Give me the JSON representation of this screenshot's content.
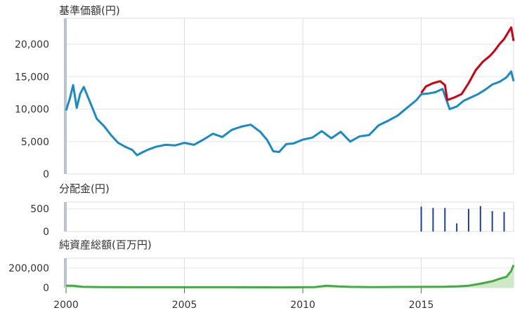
{
  "chart_data": [
    {
      "type": "line",
      "title": "基準価額(円)",
      "xlim": [
        2000.0,
        2018.9
      ],
      "ylim": [
        0,
        24000
      ],
      "yticks": [
        "0",
        "5,000",
        "10,000",
        "15,000",
        "20,000"
      ],
      "ytick_values": [
        0,
        5000,
        10000,
        15000,
        20000
      ],
      "grid": true,
      "series": [
        {
          "color": "#1a8ac6",
          "x": [
            2000.0,
            2000.15,
            2000.3,
            2000.45,
            2000.6,
            2000.75,
            2001.0,
            2001.3,
            2001.6,
            2001.9,
            2002.2,
            2002.5,
            2002.8,
            2003.0,
            2003.2,
            2003.5,
            2003.8,
            2004.2,
            2004.6,
            2005.0,
            2005.4,
            2005.8,
            2006.2,
            2006.6,
            2007.0,
            2007.4,
            2007.8,
            2008.2,
            2008.5,
            2008.75,
            2009.0,
            2009.3,
            2009.6,
            2010.0,
            2010.4,
            2010.8,
            2011.2,
            2011.6,
            2012.0,
            2012.4,
            2012.8,
            2013.2,
            2013.6,
            2014.0,
            2014.4,
            2014.8,
            2015.0,
            2015.3,
            2015.6,
            2015.9,
            2016.2,
            2016.5,
            2016.8,
            2017.1,
            2017.4,
            2017.7,
            2018.0,
            2018.3,
            2018.6,
            2018.8,
            2018.9
          ],
          "values": [
            9800,
            11500,
            13700,
            10200,
            12400,
            13400,
            11200,
            8500,
            7400,
            6000,
            4800,
            4200,
            3700,
            2900,
            3300,
            3800,
            4200,
            4500,
            4400,
            4800,
            4500,
            5300,
            6200,
            5700,
            6800,
            7300,
            7600,
            6500,
            5200,
            3500,
            3400,
            4600,
            4700,
            5300,
            5600,
            6600,
            5500,
            6500,
            5000,
            5800,
            6000,
            7500,
            8200,
            9000,
            10200,
            11400,
            12300,
            12400,
            12600,
            13100,
            10000,
            10400,
            11300,
            11800,
            12300,
            13000,
            13800,
            14200,
            14900,
            15800,
            14300
          ]
        },
        {
          "color": "#cc0011",
          "x": [
            2015.0,
            2015.2,
            2015.5,
            2015.8,
            2016.0,
            2016.1,
            2016.4,
            2016.7,
            2017.0,
            2017.3,
            2017.6,
            2017.9,
            2018.1,
            2018.3,
            2018.5,
            2018.7,
            2018.8,
            2018.9
          ],
          "values": [
            12500,
            13500,
            14000,
            14300,
            13700,
            11400,
            11800,
            12300,
            14000,
            16000,
            17300,
            18200,
            19000,
            20000,
            20800,
            22000,
            22600,
            20500
          ]
        }
      ]
    },
    {
      "type": "bar",
      "title": "分配金(円)",
      "xlim": [
        2000.0,
        2018.9
      ],
      "ylim": [
        0,
        650
      ],
      "yticks": [
        "0",
        "500"
      ],
      "ytick_values": [
        0,
        500
      ],
      "grid": true,
      "series": [
        {
          "color": "#1f3f99",
          "x": [
            2015.0,
            2015.5,
            2016.0,
            2016.5,
            2017.0,
            2017.5,
            2018.0,
            2018.5
          ],
          "values": [
            550,
            520,
            520,
            180,
            500,
            560,
            450,
            430
          ]
        }
      ]
    },
    {
      "type": "area",
      "title": "純資産総額(百万円)",
      "xlim": [
        2000.0,
        2018.9
      ],
      "ylim": [
        0,
        300000
      ],
      "yticks": [
        "0",
        "200,000"
      ],
      "ytick_values": [
        0,
        200000
      ],
      "grid": true,
      "xticks": [
        "2000",
        "2005",
        "2010",
        "2015"
      ],
      "xtick_values": [
        2000,
        2005,
        2010,
        2015
      ],
      "series": [
        {
          "color": "#44aa44",
          "x": [
            2000.0,
            2000.3,
            2000.7,
            2001.5,
            2003.0,
            2005.0,
            2007.0,
            2009.0,
            2010.5,
            2011.0,
            2011.5,
            2012.0,
            2013.0,
            2014.0,
            2015.0,
            2016.0,
            2016.5,
            2017.0,
            2017.5,
            2018.0,
            2018.3,
            2018.6,
            2018.8,
            2018.9
          ],
          "values": [
            20000,
            20000,
            8000,
            5000,
            4000,
            4000,
            4000,
            3000,
            6000,
            20000,
            12000,
            8000,
            6000,
            7000,
            8000,
            9000,
            12000,
            20000,
            40000,
            65000,
            90000,
            110000,
            170000,
            230000
          ]
        }
      ]
    }
  ]
}
